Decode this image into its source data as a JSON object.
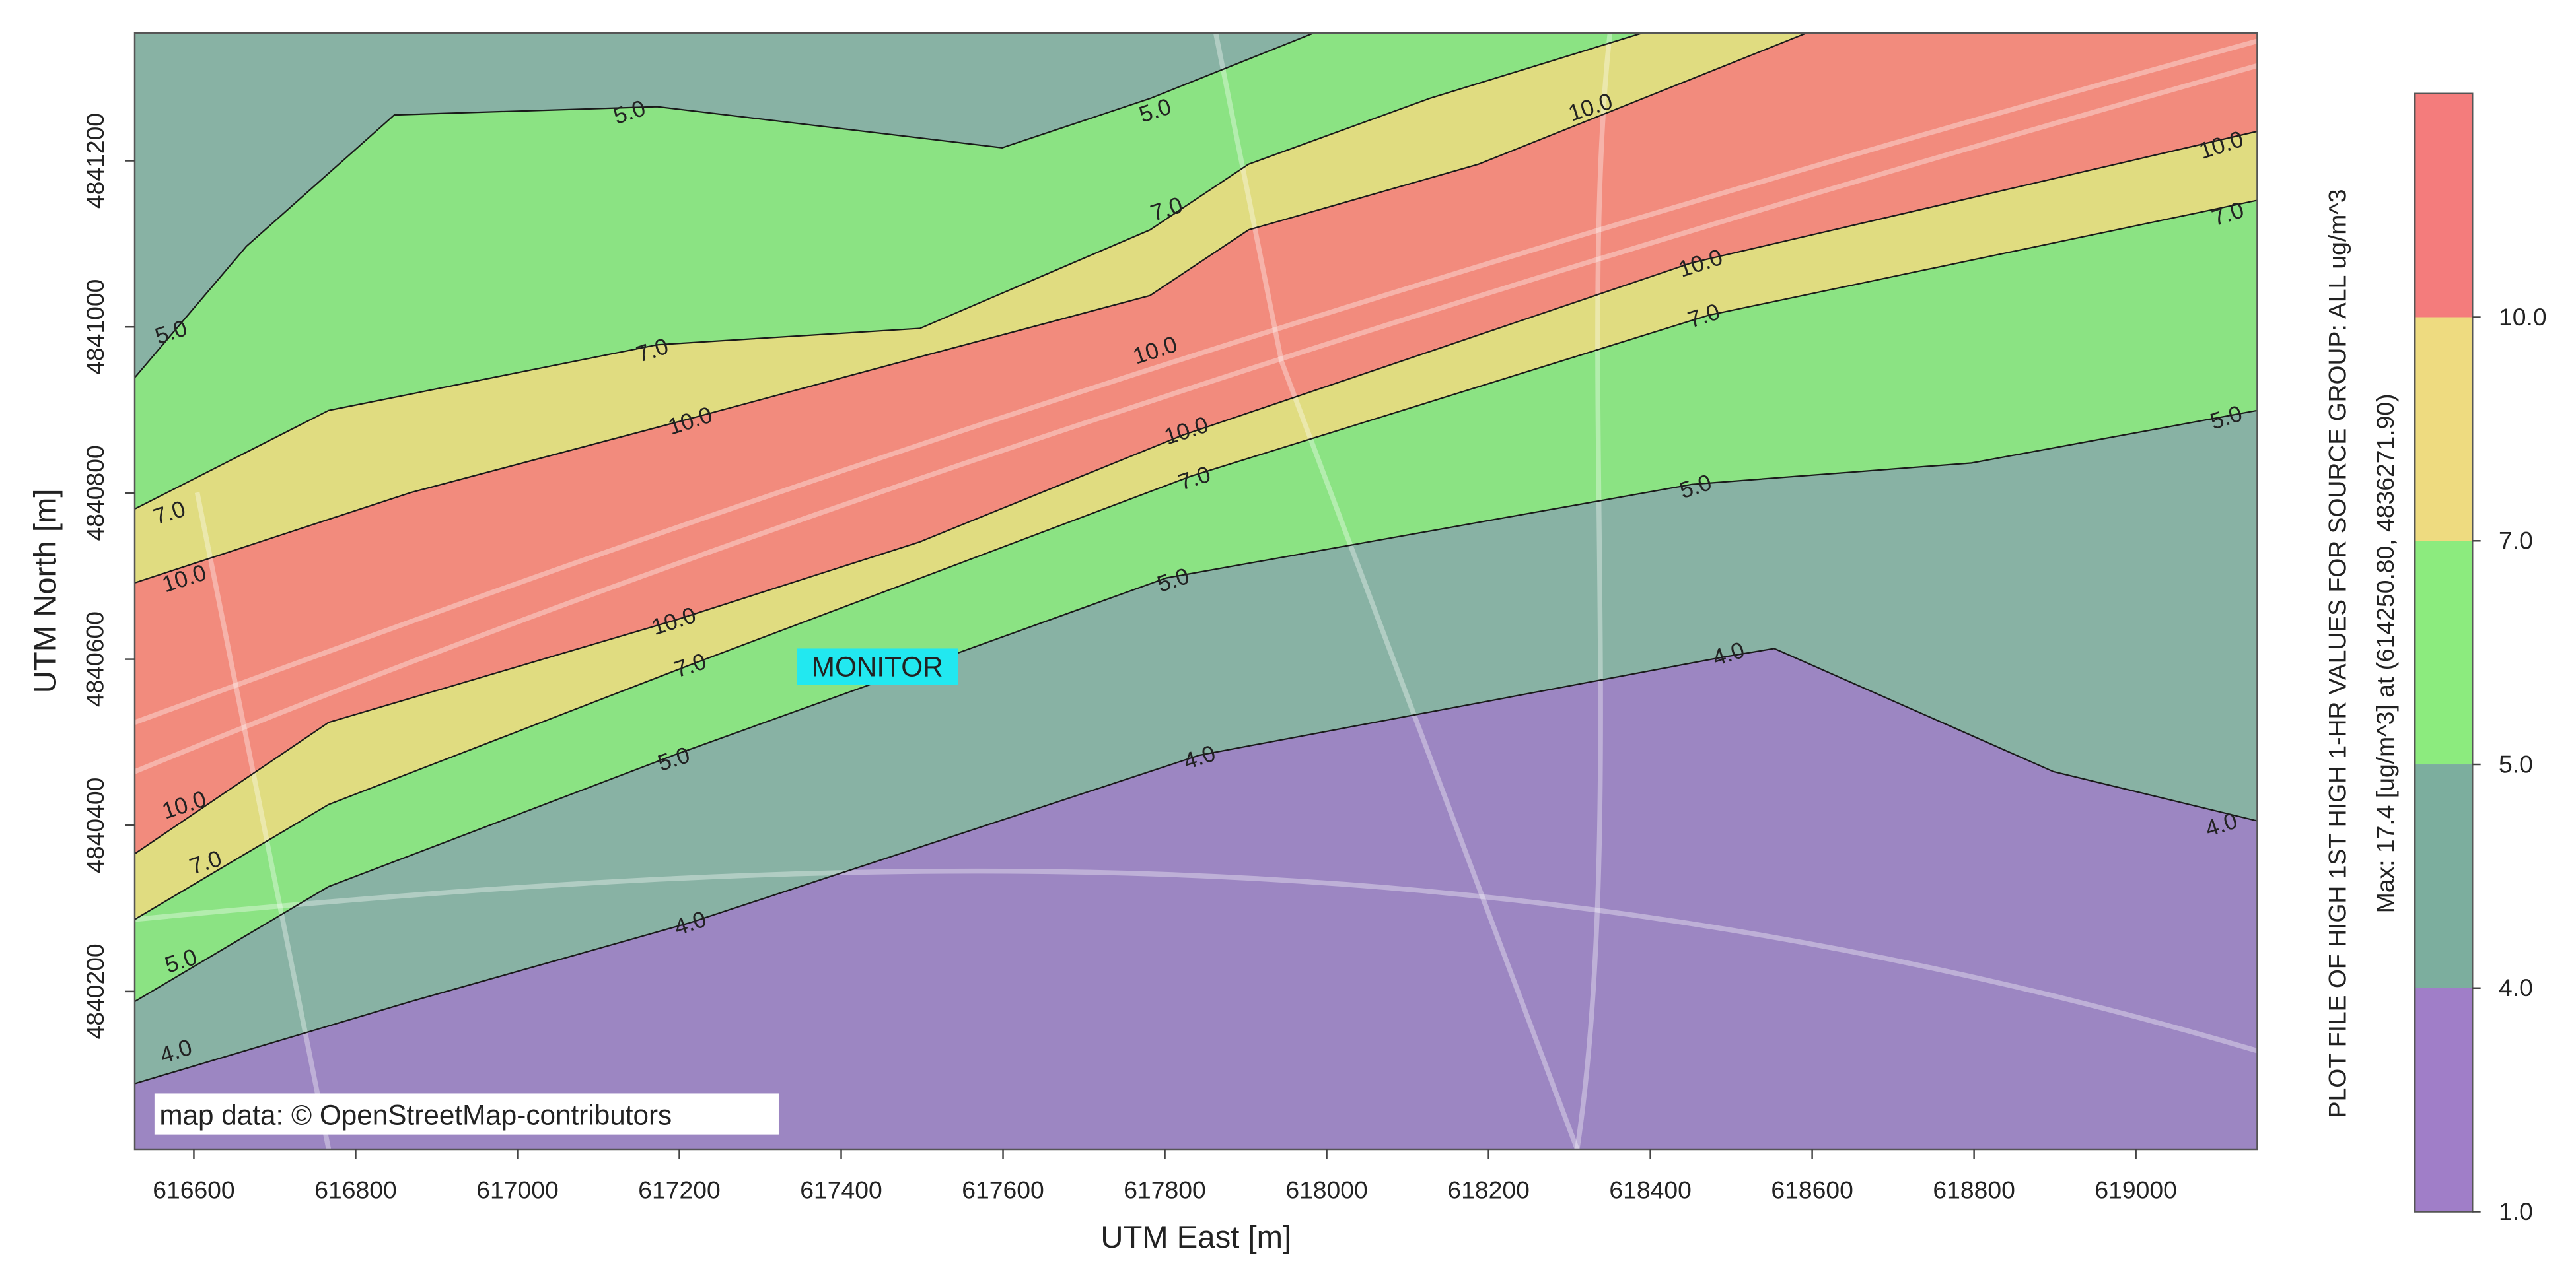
{
  "chart_data": {
    "type": "contour",
    "x_label": "UTM East [m]",
    "y_label": "UTM North [m]",
    "xlim": [
      616527,
      619150
    ],
    "ylim": [
      4840010,
      4841354
    ],
    "xticks": [
      616600,
      616800,
      617000,
      617200,
      617400,
      617600,
      617800,
      618000,
      618200,
      618400,
      618600,
      618800,
      619000
    ],
    "yticks": [
      4840200,
      4840400,
      4840600,
      4840800,
      4841000,
      4841200
    ],
    "contour_labels": [
      "5.0",
      "5.0",
      "10.0",
      "10.0",
      "7.0",
      "7.0",
      "10.0",
      "7.0",
      "5.0",
      "7.0",
      "10.0",
      "10.0",
      "10.0",
      "5.0",
      "7.0",
      "5.0",
      "7.0",
      "10.0",
      "5.0",
      "10.0",
      "7.0",
      "4.0",
      "5.0",
      "4.0",
      "10.0",
      "7.0",
      "4.0",
      "4.0",
      "5.0",
      "4.0"
    ],
    "monitor_label": "MONITOR",
    "attribution": "map data: © OpenStreetMap-contributors",
    "colorbar": {
      "title": "PLOT FILE OF HIGH 1ST HIGH 1-HR VALUES FOR SOURCE GROUP: ALL    ug/m^3",
      "max_text": "Max:  17.4  [ug/m^3]  at  (614250.80, 4836271.90)",
      "ticks": [
        {
          "value": 1,
          "label": "1.0"
        },
        {
          "value": 4,
          "label": "4.0"
        },
        {
          "value": 5,
          "label": "5.0"
        },
        {
          "value": 7,
          "label": "7.0"
        },
        {
          "value": 10,
          "label": "10.0"
        }
      ],
      "colors": [
        "#a07ec8",
        "#7cae9e",
        "#8ceb7e",
        "#eedb80",
        "#f47c7c"
      ]
    }
  }
}
